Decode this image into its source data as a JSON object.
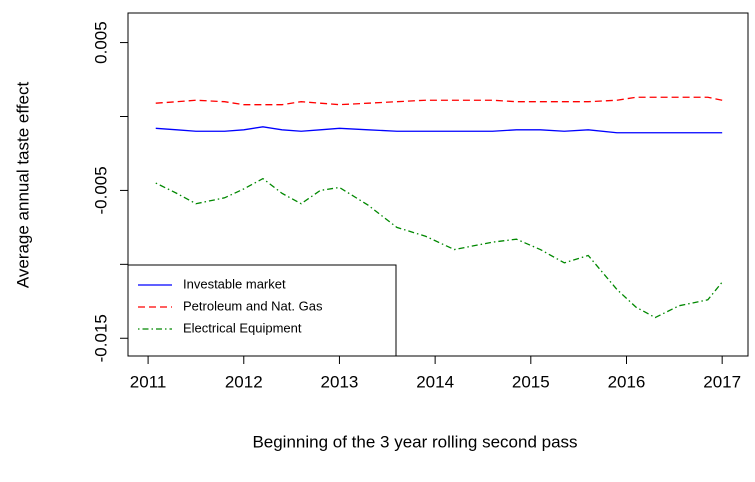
{
  "chart_data": {
    "type": "line",
    "x_label": "Beginning of the 3 year rolling second pass",
    "y_label": "Average annual taste effect",
    "x": [
      2011.08,
      2011.3,
      2011.5,
      2011.8,
      2012.0,
      2012.2,
      2012.4,
      2012.6,
      2012.8,
      2013.0,
      2013.3,
      2013.6,
      2013.9,
      2014.2,
      2014.6,
      2014.85,
      2015.1,
      2015.35,
      2015.6,
      2015.9,
      2016.1,
      2016.3,
      2016.55,
      2016.85,
      2017.0
    ],
    "series": [
      {
        "name": "Investable market",
        "color": "#0000ff",
        "dash": "solid",
        "values": [
          -0.0008,
          -0.0009,
          -0.001,
          -0.001,
          -0.0009,
          -0.0007,
          -0.0009,
          -0.001,
          -0.0009,
          -0.0008,
          -0.0009,
          -0.001,
          -0.001,
          -0.001,
          -0.001,
          -0.0009,
          -0.0009,
          -0.001,
          -0.0009,
          -0.0011,
          -0.0011,
          -0.0011,
          -0.0011,
          -0.0011,
          -0.0011
        ]
      },
      {
        "name": "Petroleum and Nat. Gas",
        "color": "#ff0000",
        "dash": "dashed",
        "values": [
          0.0009,
          0.001,
          0.0011,
          0.001,
          0.0008,
          0.0008,
          0.0008,
          0.001,
          0.0009,
          0.0008,
          0.0009,
          0.001,
          0.0011,
          0.0011,
          0.0011,
          0.001,
          0.001,
          0.001,
          0.001,
          0.0011,
          0.0013,
          0.0013,
          0.0013,
          0.0013,
          0.0011
        ]
      },
      {
        "name": "Electrical Equipment",
        "color": "#008800",
        "dash": "dotdash",
        "values": [
          -0.0045,
          -0.0052,
          -0.0059,
          -0.0055,
          -0.0049,
          -0.0042,
          -0.0052,
          -0.0059,
          -0.005,
          -0.0048,
          -0.006,
          -0.0075,
          -0.0081,
          -0.009,
          -0.0085,
          -0.0083,
          -0.009,
          -0.0099,
          -0.0094,
          -0.0117,
          -0.0129,
          -0.0136,
          -0.0128,
          -0.0124,
          -0.0112
        ]
      }
    ],
    "xlim": [
      2010.79,
      2017.27
    ],
    "xticks": [
      2011,
      2012,
      2013,
      2014,
      2015,
      2016,
      2017
    ],
    "ylim": [
      -0.0162,
      0.007
    ],
    "yticks": [
      0.005,
      -0.005,
      -0.015
    ],
    "yticks_unlabeled": [
      0,
      -0.01
    ],
    "grid": false,
    "legend": "bottom-left"
  }
}
